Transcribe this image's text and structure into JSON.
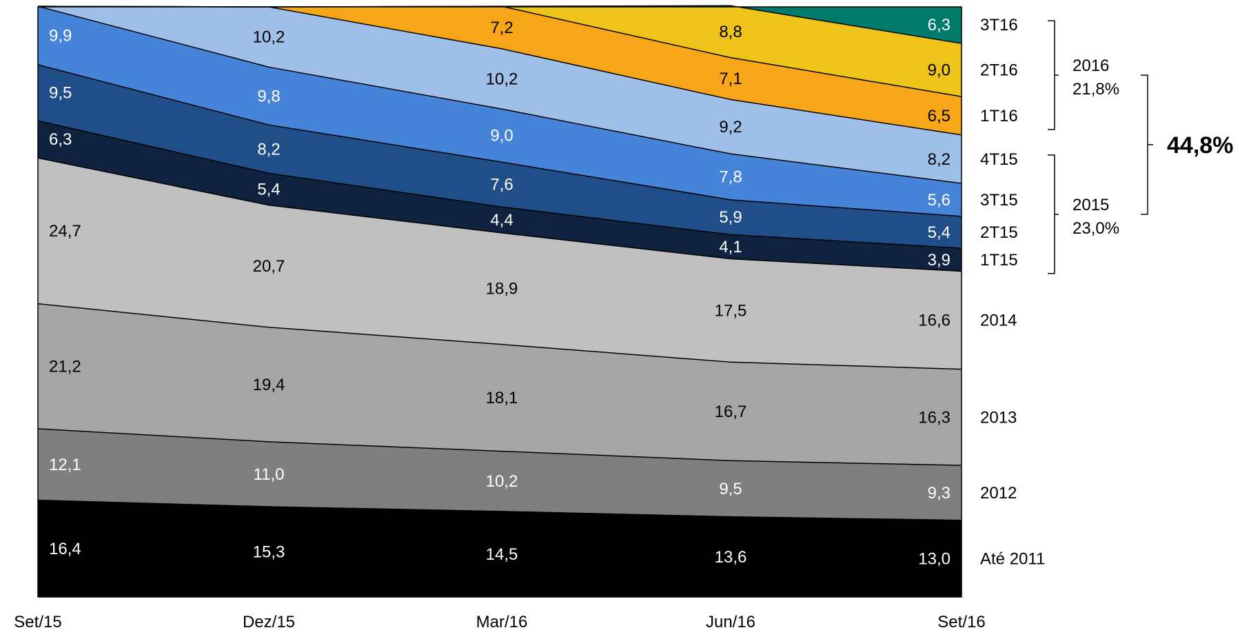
{
  "chart_data": {
    "type": "area",
    "stacked": true,
    "normalized_percent": true,
    "x": [
      "Set/15",
      "Dez/15",
      "Mar/16",
      "Jun/16",
      "Set/16"
    ],
    "ylim": [
      0,
      100
    ],
    "grid": false,
    "legend": "right",
    "series": [
      {
        "name": "Até 2011",
        "values": [
          16.4,
          15.3,
          14.5,
          13.6,
          13.0
        ],
        "labels": [
          "16,4",
          "15,3",
          "14,5",
          "13,6",
          "13,0"
        ],
        "color": "#000000",
        "text_color": "#ffffff"
      },
      {
        "name": "2012",
        "values": [
          12.1,
          11.0,
          10.2,
          9.5,
          9.3
        ],
        "labels": [
          "12,1",
          "11,0",
          "10,2",
          "9,5",
          "9,3"
        ],
        "color": "#7f7f7f",
        "text_color": "#ffffff"
      },
      {
        "name": "2013",
        "values": [
          21.2,
          19.4,
          18.1,
          16.7,
          16.3
        ],
        "labels": [
          "21,2",
          "19,4",
          "18,1",
          "16,7",
          "16,3"
        ],
        "color": "#a6a6a6",
        "text_color": "#000000"
      },
      {
        "name": "2014",
        "values": [
          24.7,
          20.7,
          18.9,
          17.5,
          16.6
        ],
        "labels": [
          "24,7",
          "20,7",
          "18,9",
          "17,5",
          "16,6"
        ],
        "color": "#c0c0c0",
        "text_color": "#000000"
      },
      {
        "name": "1T15",
        "values": [
          6.3,
          5.4,
          4.4,
          4.1,
          3.9
        ],
        "labels": [
          "6,3",
          "5,4",
          "4,4",
          "4,1",
          "3,9"
        ],
        "color": "#0f2340",
        "text_color": "#ffffff"
      },
      {
        "name": "2T15",
        "values": [
          9.5,
          8.2,
          7.6,
          5.9,
          5.4
        ],
        "labels": [
          "9,5",
          "8,2",
          "7,6",
          "5,9",
          "5,4"
        ],
        "color": "#1f4e88",
        "text_color": "#ffffff"
      },
      {
        "name": "3T15",
        "values": [
          9.9,
          9.8,
          9.0,
          7.8,
          5.6
        ],
        "labels": [
          "9,9",
          "9,8",
          "9,0",
          "7,8",
          "5,6"
        ],
        "color": "#4584d8",
        "text_color": "#ffffff"
      },
      {
        "name": "4T15",
        "values": [
          null,
          10.2,
          10.2,
          9.2,
          8.2
        ],
        "labels": [
          "",
          "10,2",
          "10,2",
          "9,2",
          "8,2"
        ],
        "color": "#9dbfe8",
        "text_color": "#000000"
      },
      {
        "name": "1T16",
        "values": [
          null,
          null,
          7.2,
          7.1,
          6.5
        ],
        "labels": [
          "",
          "",
          "7,2",
          "7,1",
          "6,5"
        ],
        "color": "#f7a519",
        "text_color": "#000000"
      },
      {
        "name": "2T16",
        "values": [
          null,
          null,
          null,
          8.8,
          9.0
        ],
        "labels": [
          "",
          "",
          "",
          "8,8",
          "9,0"
        ],
        "color": "#eec41a",
        "text_color": "#000000"
      },
      {
        "name": "3T16",
        "values": [
          null,
          null,
          null,
          null,
          6.3
        ],
        "labels": [
          "",
          "",
          "",
          "",
          "6,3"
        ],
        "color": "#007a6b",
        "text_color": "#ffffff"
      }
    ],
    "groups": [
      {
        "label_top": "2016",
        "label_bottom": "21,8%",
        "members": [
          "1T16",
          "2T16",
          "3T16"
        ]
      },
      {
        "label_top": "2015",
        "label_bottom": "23,0%",
        "members": [
          "1T15",
          "2T15",
          "3T15",
          "4T15"
        ]
      }
    ],
    "total": {
      "label": "44,8%"
    }
  }
}
